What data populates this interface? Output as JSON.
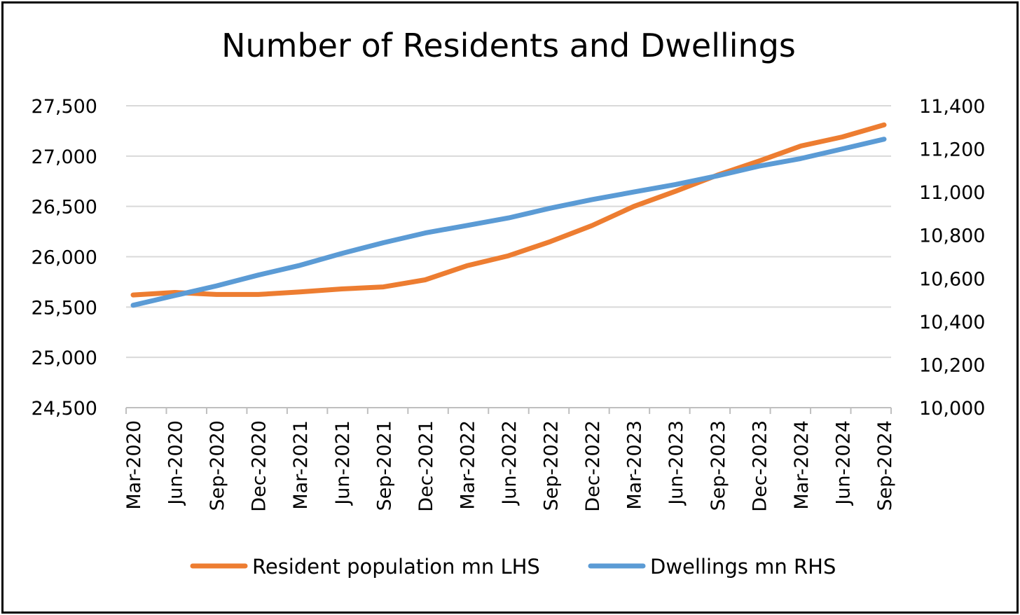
{
  "chart_data": {
    "type": "line",
    "title": "Number of Residents and Dwellings",
    "categories": [
      "Mar-2020",
      "Jun-2020",
      "Sep-2020",
      "Dec-2020",
      "Mar-2021",
      "Jun-2021",
      "Sep-2021",
      "Dec-2021",
      "Mar-2022",
      "Jun-2022",
      "Sep-2022",
      "Dec-2022",
      "Mar-2023",
      "Jun-2023",
      "Sep-2023",
      "Dec-2023",
      "Mar-2024",
      "Jun-2024",
      "Sep-2024"
    ],
    "y_left": {
      "min": 24500,
      "max": 27500,
      "ticks": [
        24500,
        25000,
        25500,
        26000,
        26500,
        27000,
        27500
      ],
      "tick_labels": [
        "24,500",
        "25,000",
        "25,500",
        "26,000",
        "26,500",
        "27,000",
        "27,500"
      ]
    },
    "y_right": {
      "min": 10000,
      "max": 11400,
      "ticks": [
        10000,
        10200,
        10400,
        10600,
        10800,
        11000,
        11200,
        11400
      ],
      "tick_labels": [
        "10,000",
        "10,200",
        "10,400",
        "10,600",
        "10,800",
        "11,000",
        "11,200",
        "11,400"
      ]
    },
    "grid": "horizontal",
    "legend_position": "bottom",
    "series": [
      {
        "name": "Resident population mn LHS",
        "axis": "left",
        "color": "#ED7D31",
        "values": [
          25620,
          25645,
          25625,
          25625,
          25650,
          25680,
          25700,
          25770,
          25910,
          26010,
          26150,
          26310,
          26500,
          26650,
          26810,
          26950,
          27100,
          27190,
          27310
        ]
      },
      {
        "name": "Dwellings mn RHS",
        "axis": "right",
        "color": "#5B9BD5",
        "values": [
          10475,
          10520,
          10565,
          10615,
          10660,
          10715,
          10765,
          10810,
          10845,
          10880,
          10925,
          10965,
          11000,
          11035,
          11075,
          11120,
          11155,
          11200,
          11245
        ]
      }
    ]
  }
}
